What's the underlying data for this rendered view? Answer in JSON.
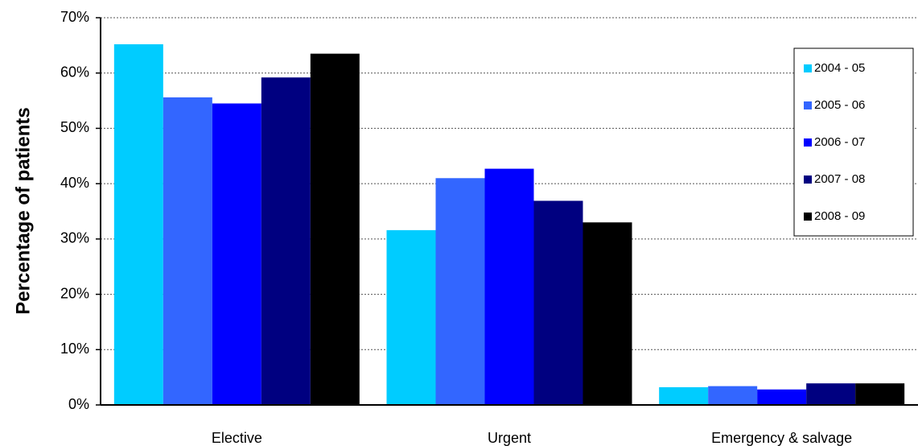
{
  "chart_data": {
    "type": "bar",
    "ylabel": "Percentage of patients",
    "categories": [
      "Elective",
      "Urgent",
      "Emergency & salvage"
    ],
    "series": [
      {
        "name": "2004 - 05",
        "color": "#00ccff",
        "values": [
          65.2,
          31.6,
          3.2
        ]
      },
      {
        "name": "2005 - 06",
        "color": "#3366ff",
        "values": [
          55.6,
          41.0,
          3.4
        ]
      },
      {
        "name": "2006 - 07",
        "color": "#0000ff",
        "values": [
          54.5,
          42.7,
          2.8
        ]
      },
      {
        "name": "2007 - 08",
        "color": "#000080",
        "values": [
          59.2,
          36.9,
          3.9
        ]
      },
      {
        "name": "2008 - 09",
        "color": "#000000",
        "values": [
          63.5,
          33.0,
          3.9
        ]
      }
    ],
    "ylim": [
      0,
      70
    ],
    "yticks": [
      {
        "value": 0,
        "label": "0%"
      },
      {
        "value": 10,
        "label": "10%"
      },
      {
        "value": 20,
        "label": "20%"
      },
      {
        "value": 30,
        "label": "30%"
      },
      {
        "value": 40,
        "label": "40%"
      },
      {
        "value": 50,
        "label": "50%"
      },
      {
        "value": 60,
        "label": "60%"
      },
      {
        "value": 70,
        "label": "70%"
      }
    ],
    "grid": true,
    "legend": "upper right"
  }
}
